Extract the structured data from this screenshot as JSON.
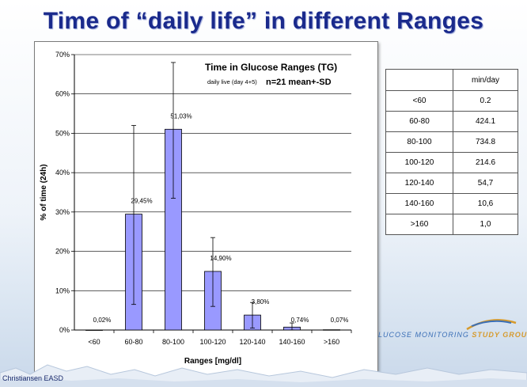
{
  "slide": {
    "title": "Time of “daily life” in different Ranges",
    "footer": "Christiansen EASD",
    "logo_text_light": "LUCOSE MONITORING",
    "logo_text_strong": "STUDY GROUP"
  },
  "chart_data": {
    "type": "bar",
    "title": "Time in Glucose Ranges (TG)",
    "subtitle_small": "daily live (day 4+5)",
    "subtitle_big": "n=21    mean+-SD",
    "xlabel": "Ranges [mg/dl]",
    "ylabel": "% of time (24h)",
    "ylim": [
      0,
      70
    ],
    "yticks": [
      0,
      10,
      20,
      30,
      40,
      50,
      60,
      70
    ],
    "ytick_labels": [
      "0%",
      "10%",
      "20%",
      "30%",
      "40%",
      "50%",
      "60%",
      "70%"
    ],
    "grid": true,
    "categories": [
      "<60",
      "60-80",
      "80-100",
      "100-120",
      "120-140",
      "140-160",
      ">160"
    ],
    "values": [
      0.02,
      29.45,
      51.03,
      14.9,
      3.8,
      0.74,
      0.07
    ],
    "value_labels": [
      "0,02%",
      "29,45%",
      "51,03%",
      "14,90%",
      "3,80%",
      "0,74%",
      "0,07%"
    ],
    "error_upper": [
      0.02,
      52,
      68,
      23.5,
      7,
      1.8,
      0.2
    ],
    "error_lower": [
      0.02,
      6.5,
      33.5,
      6,
      0.5,
      0,
      0
    ],
    "bar_color": "#9999ff"
  },
  "table": {
    "header": [
      "",
      "min/day"
    ],
    "rows": [
      [
        "<60",
        "0.2"
      ],
      [
        "60-80",
        "424.1"
      ],
      [
        "80-100",
        "734.8"
      ],
      [
        "100-120",
        "214.6"
      ],
      [
        "120-140",
        "54,7"
      ],
      [
        "140-160",
        "10,6"
      ],
      [
        ">160",
        "1,0"
      ]
    ]
  }
}
